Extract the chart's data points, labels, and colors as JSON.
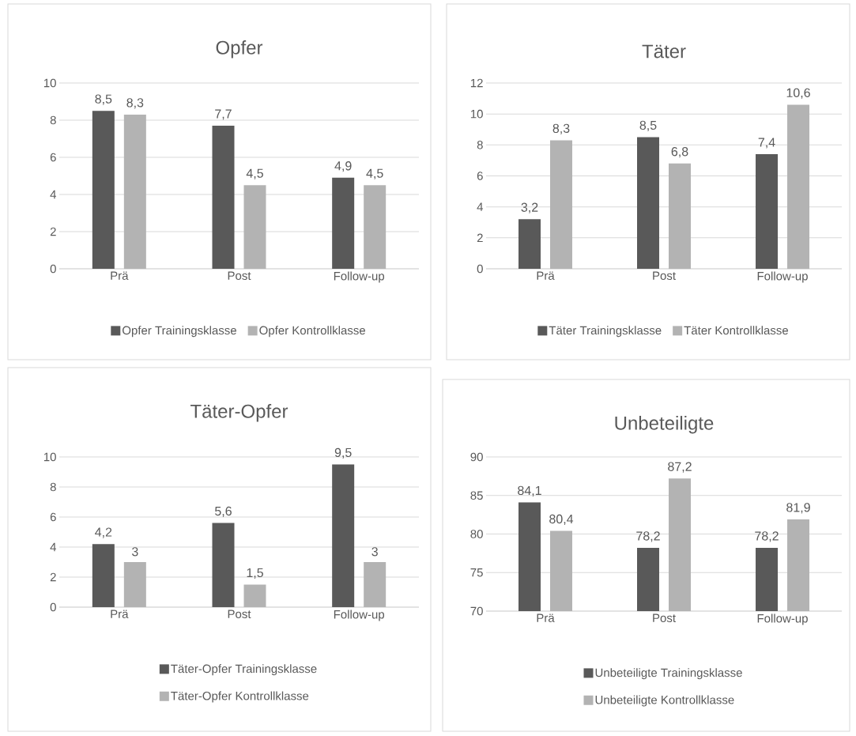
{
  "chart_data": [
    {
      "type": "bar",
      "title": "Opfer",
      "categories": [
        "Prä",
        "Post",
        "Follow-up"
      ],
      "ylim": [
        0,
        10
      ],
      "yticks": [
        0,
        2,
        4,
        6,
        8,
        10
      ],
      "grid": "y",
      "legend": "bottom",
      "series": [
        {
          "name": "Opfer Trainingsklasse",
          "color": "#595959",
          "values": [
            8.5,
            7.7,
            4.9
          ],
          "value_labels": [
            "8,5",
            "7,7",
            "4,9"
          ]
        },
        {
          "name": "Opfer Kontrollklasse",
          "color": "#b3b3b3",
          "values": [
            8.3,
            4.5,
            4.5
          ],
          "value_labels": [
            "8,3",
            "4,5",
            "4,5"
          ]
        }
      ]
    },
    {
      "type": "bar",
      "title": "Täter",
      "categories": [
        "Prä",
        "Post",
        "Follow-up"
      ],
      "ylim": [
        0,
        12
      ],
      "yticks": [
        0,
        2,
        4,
        6,
        8,
        10,
        12
      ],
      "grid": "y",
      "legend": "bottom",
      "series": [
        {
          "name": "Täter Trainingsklasse",
          "color": "#595959",
          "values": [
            3.2,
            8.5,
            7.4
          ],
          "value_labels": [
            "3,2",
            "8,5",
            "7,4"
          ]
        },
        {
          "name": "Täter Kontrollklasse",
          "color": "#b3b3b3",
          "values": [
            8.3,
            6.8,
            10.6
          ],
          "value_labels": [
            "8,3",
            "6,8",
            "10,6"
          ]
        }
      ]
    },
    {
      "type": "bar",
      "title": "Täter-Opfer",
      "categories": [
        "Prä",
        "Post",
        "Follow-up"
      ],
      "ylim": [
        0,
        10
      ],
      "yticks": [
        0,
        2,
        4,
        6,
        8,
        10
      ],
      "grid": "y",
      "legend": "bottom",
      "series": [
        {
          "name": "Täter-Opfer Trainingsklasse",
          "color": "#595959",
          "values": [
            4.2,
            5.6,
            9.5
          ],
          "value_labels": [
            "4,2",
            "5,6",
            "9,5"
          ]
        },
        {
          "name": "Täter-Opfer Kontrollklasse",
          "color": "#b3b3b3",
          "values": [
            3,
            1.5,
            3
          ],
          "value_labels": [
            "3",
            "1,5",
            "3"
          ]
        }
      ]
    },
    {
      "type": "bar",
      "title": "Unbeteiligte",
      "categories": [
        "Prä",
        "Post",
        "Follow-up"
      ],
      "ylim": [
        70,
        90
      ],
      "yticks": [
        70,
        75,
        80,
        85,
        90
      ],
      "grid": "y",
      "legend": "bottom",
      "series": [
        {
          "name": "Unbeteiligte Trainingsklasse",
          "color": "#595959",
          "values": [
            84.1,
            78.2,
            78.2
          ],
          "value_labels": [
            "84,1",
            "78,2",
            "78,2"
          ]
        },
        {
          "name": "Unbeteiligte Kontrollklasse",
          "color": "#b3b3b3",
          "values": [
            80.4,
            87.2,
            81.9
          ],
          "value_labels": [
            "80,4",
            "87,2",
            "81,9"
          ]
        }
      ]
    }
  ]
}
